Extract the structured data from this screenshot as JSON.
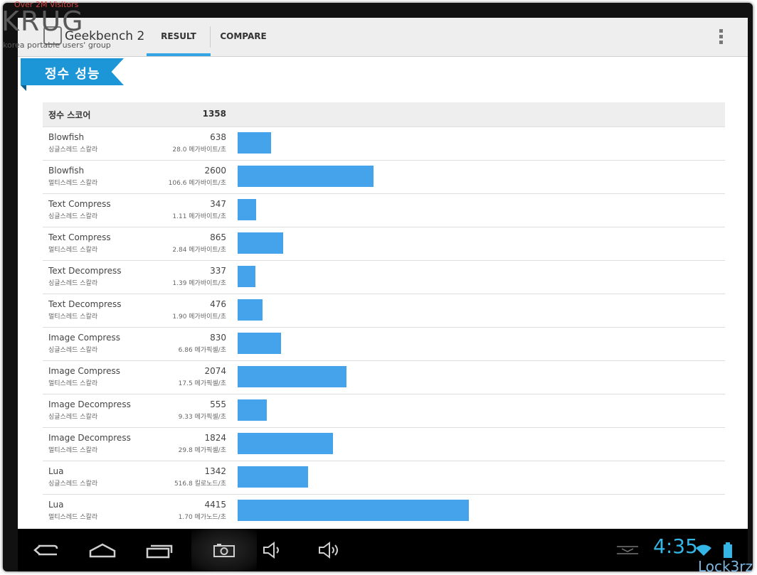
{
  "app": {
    "title": "Geekbench 2"
  },
  "tabs": [
    {
      "label": "RESULT",
      "selected": true
    },
    {
      "label": "COMPARE",
      "selected": false
    }
  ],
  "section": {
    "title": "정수 성능"
  },
  "summary": {
    "label": "정수 스코어",
    "score": "1358"
  },
  "rows": [
    {
      "name": "Blowfish",
      "mode": "싱글스레드 스칼라",
      "score": "638",
      "rate": "28.0 메가바이트/초",
      "value": 638
    },
    {
      "name": "Blowfish",
      "mode": "멀티스레드 스칼라",
      "score": "2600",
      "rate": "106.6 메가바이트/초",
      "value": 2600
    },
    {
      "name": "Text Compress",
      "mode": "싱글스레드 스칼라",
      "score": "347",
      "rate": "1.11 메가바이트/초",
      "value": 347
    },
    {
      "name": "Text Compress",
      "mode": "멀티스레드 스칼라",
      "score": "865",
      "rate": "2.84 메가바이트/초",
      "value": 865
    },
    {
      "name": "Text Decompress",
      "mode": "싱글스레드 스칼라",
      "score": "337",
      "rate": "1.39 메가바이트/초",
      "value": 337
    },
    {
      "name": "Text Decompress",
      "mode": "멀티스레드 스칼라",
      "score": "476",
      "rate": "1.90 메가바이트/초",
      "value": 476
    },
    {
      "name": "Image Compress",
      "mode": "싱글스레드 스칼라",
      "score": "830",
      "rate": "6.86 메가픽셀/초",
      "value": 830
    },
    {
      "name": "Image Compress",
      "mode": "멀티스레드 스칼라",
      "score": "2074",
      "rate": "17.5 메가픽셀/초",
      "value": 2074
    },
    {
      "name": "Image Decompress",
      "mode": "싱글스레드 스칼라",
      "score": "555",
      "rate": "9.33 메가픽셀/초",
      "value": 555
    },
    {
      "name": "Image Decompress",
      "mode": "멀티스레드 스칼라",
      "score": "1824",
      "rate": "29.8 메가픽셀/초",
      "value": 1824
    },
    {
      "name": "Lua",
      "mode": "싱글스레드 스칼라",
      "score": "1342",
      "rate": "516.8 킬로노드/초",
      "value": 1342
    },
    {
      "name": "Lua",
      "mode": "멀티스레드 스칼라",
      "score": "4415",
      "rate": "1.70 메가노드/초",
      "value": 4415
    }
  ],
  "bar_scale_max": 4415,
  "status": {
    "time": "4:35"
  },
  "watermarks": {
    "top_visits": "Over 2M Visitors",
    "top_logo": "KRUG",
    "top_tagline": "korea portable users' group",
    "bottom": "Lock3rz"
  },
  "colors": {
    "accent": "#33b5e5",
    "bar": "#44a3eb",
    "ribbon": "#1c96d6"
  },
  "icons": [
    "back-icon",
    "home-icon",
    "recent-apps-icon",
    "camera-icon",
    "volume-down-icon",
    "volume-up-icon",
    "keyboard-hide-icon",
    "wifi-icon",
    "battery-icon",
    "overflow-menu-icon"
  ]
}
